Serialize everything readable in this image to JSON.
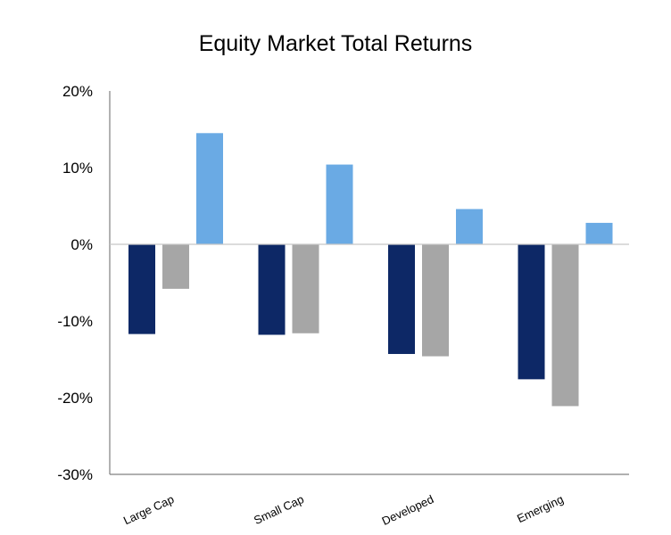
{
  "chart_data": {
    "type": "bar",
    "title": "Equity Market Total Returns",
    "xlabel": "",
    "ylabel": "",
    "categories": [
      "Large Cap",
      "Small Cap",
      "Developed",
      "Emerging"
    ],
    "series": [
      {
        "color": "#0d2866",
        "values": [
          -11.7,
          -11.8,
          -14.3,
          -17.6
        ]
      },
      {
        "color": "#a6a6a6",
        "values": [
          -5.8,
          -11.6,
          -14.6,
          -21.1
        ]
      },
      {
        "color": "#6aaae4",
        "values": [
          14.5,
          10.4,
          4.6,
          2.8
        ]
      }
    ],
    "ylim": [
      -30,
      20
    ],
    "yticks": [
      20,
      10,
      0,
      -10,
      -20,
      -30
    ],
    "ytick_labels": [
      "20%",
      "10%",
      "0%",
      "-10%",
      "-20%",
      "-30%"
    ],
    "grid": false,
    "legend": "none"
  }
}
